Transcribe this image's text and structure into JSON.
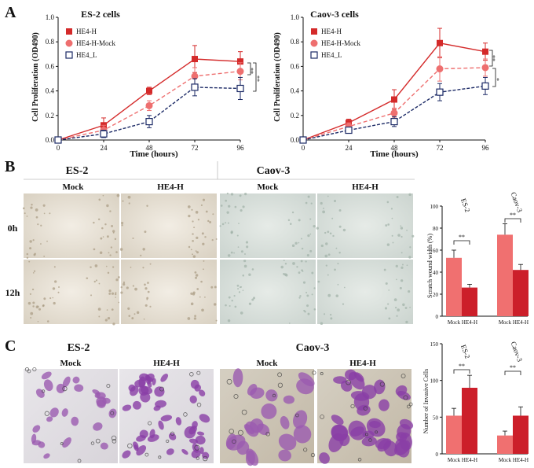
{
  "panel_labels": {
    "a": "A",
    "b": "B",
    "c": "C"
  },
  "sig": {
    "two": "**",
    "one": "*"
  },
  "chart_data": [
    {
      "type": "line",
      "title": "ES-2 cells",
      "xlabel": "Time (hours)",
      "ylabel": "Cell Proliferation (OD490)",
      "x": [
        0,
        24,
        48,
        72,
        96
      ],
      "xticks": [
        "0",
        "24",
        "48",
        "72",
        "96"
      ],
      "ylim": [
        0,
        1.0
      ],
      "yticks": [
        "0.0",
        "0.2",
        "0.4",
        "0.6",
        "0.8",
        "1.0"
      ],
      "series": [
        {
          "name": "HE4-H",
          "color": "#d42a2a",
          "marker": "square",
          "values": [
            0.0,
            0.12,
            0.4,
            0.66,
            0.64
          ],
          "err": [
            0,
            0.06,
            0.03,
            0.11,
            0.08
          ]
        },
        {
          "name": "HE4-H-Mock",
          "color": "#ee6f6f",
          "marker": "circle",
          "values": [
            0.0,
            0.08,
            0.28,
            0.52,
            0.56
          ],
          "err": [
            0,
            0.04,
            0.04,
            0.07,
            0.07
          ]
        },
        {
          "name": "HE4_L",
          "color": "#1c2a66",
          "marker": "open-square",
          "values": [
            0.0,
            0.05,
            0.15,
            0.43,
            0.42
          ],
          "err": [
            0,
            0.03,
            0.05,
            0.07,
            0.09
          ]
        }
      ]
    },
    {
      "type": "line",
      "title": "Caov-3 cells",
      "xlabel": "Time (hours)",
      "ylabel": "Cell Proliferation (OD490)",
      "x": [
        0,
        24,
        48,
        72,
        96
      ],
      "xticks": [
        "0",
        "24",
        "48",
        "72",
        "96"
      ],
      "ylim": [
        0,
        1.0
      ],
      "yticks": [
        "0.0",
        "0.2",
        "0.4",
        "0.6",
        "0.8",
        "1.0"
      ],
      "series": [
        {
          "name": "HE4-H",
          "color": "#d42a2a",
          "marker": "square",
          "values": [
            0.0,
            0.14,
            0.33,
            0.79,
            0.72
          ],
          "err": [
            0,
            0.03,
            0.08,
            0.12,
            0.07
          ]
        },
        {
          "name": "HE4-H-Mock",
          "color": "#ee6f6f",
          "marker": "circle",
          "values": [
            0.0,
            0.11,
            0.22,
            0.58,
            0.59
          ],
          "err": [
            0,
            0.03,
            0.04,
            0.1,
            0.07
          ]
        },
        {
          "name": "HE4_L",
          "color": "#1c2a66",
          "marker": "open-square",
          "values": [
            0.0,
            0.08,
            0.15,
            0.39,
            0.44
          ],
          "err": [
            0,
            0.02,
            0.04,
            0.07,
            0.07
          ]
        }
      ]
    },
    {
      "type": "bar",
      "ylabel": "Scratch wound width (%)",
      "ylim": [
        0,
        100
      ],
      "yticks": [
        "0",
        "20",
        "40",
        "60",
        "80",
        "100"
      ],
      "groups": [
        "ES-2",
        "Caov-3"
      ],
      "categories": [
        "Mock",
        "HE4-H"
      ],
      "colors": [
        "#f07070",
        "#cc1f2a"
      ],
      "values": [
        [
          53,
          26
        ],
        [
          74,
          42
        ]
      ],
      "err": [
        [
          7,
          3
        ],
        [
          10,
          5
        ]
      ]
    },
    {
      "type": "bar",
      "ylabel": "Number of Invasive Cells",
      "ylim": [
        0,
        150
      ],
      "yticks": [
        "0",
        "50",
        "100",
        "150"
      ],
      "groups": [
        "ES-2",
        "Caov-3"
      ],
      "categories": [
        "Mock",
        "HE4-H"
      ],
      "colors": [
        "#f07070",
        "#cc1f2a"
      ],
      "values": [
        [
          52,
          90
        ],
        [
          25,
          52
        ]
      ],
      "err": [
        [
          10,
          17
        ],
        [
          6,
          12
        ]
      ]
    }
  ],
  "wound": {
    "lines": [
      "ES-2",
      "Caov-3"
    ],
    "cols": [
      "Mock",
      "HE4-H",
      "Mock",
      "HE4-H"
    ],
    "rows": [
      "0h",
      "12h"
    ]
  },
  "invasion": {
    "lines": [
      "ES-2",
      "Caov-3"
    ],
    "cols": [
      "Mock",
      "HE4-H",
      "Mock",
      "HE4-H"
    ]
  }
}
